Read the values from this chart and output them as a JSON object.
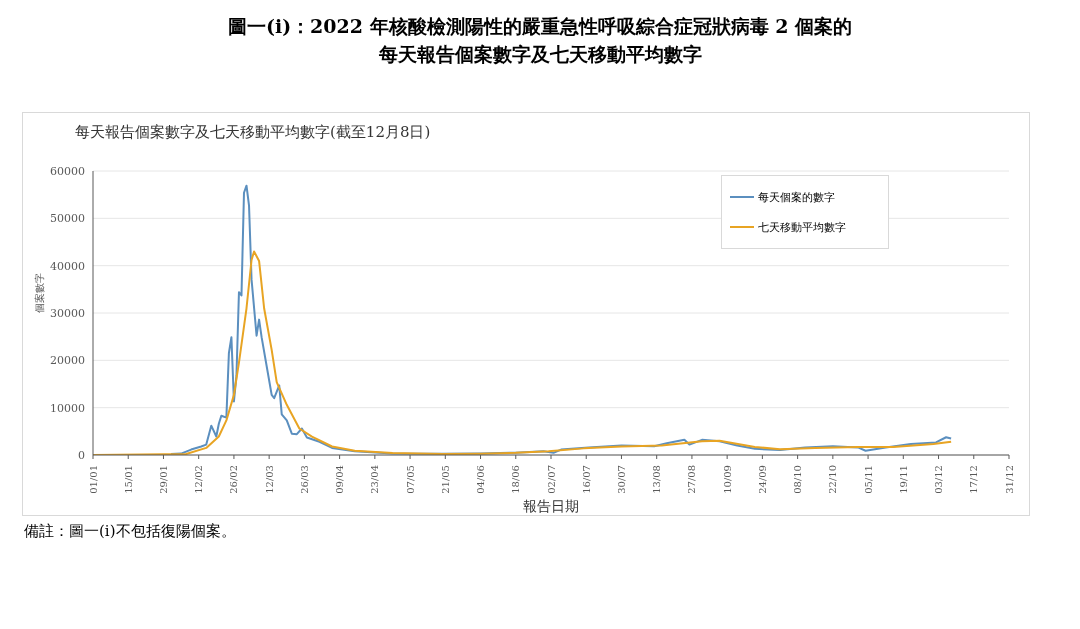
{
  "chart_data": {
    "type": "line",
    "title": "圖一(i)：2022 年核酸檢測陽性的嚴重急性呼吸綜合症冠狀病毒 2 個案的每天報告個案數字及七天移動平均數字",
    "subtitle": "每天報告個案數字及七天移動平均數字(截至12月8日)",
    "xlabel": "報告日期",
    "ylabel": "個案數字",
    "annotations": [
      "備註：圖一(i)不包括復陽個案。"
    ],
    "xlim": [
      "2022-01-01",
      "2022-12-31"
    ],
    "xticks": [
      {
        "value": "2022-01-01",
        "label": "01/01"
      },
      {
        "value": "2022-01-15",
        "label": "15/01"
      },
      {
        "value": "2022-01-29",
        "label": "29/01"
      },
      {
        "value": "2022-02-12",
        "label": "12/02"
      },
      {
        "value": "2022-02-26",
        "label": "26/02"
      },
      {
        "value": "2022-03-12",
        "label": "12/03"
      },
      {
        "value": "2022-03-26",
        "label": "26/03"
      },
      {
        "value": "2022-04-09",
        "label": "09/04"
      },
      {
        "value": "2022-04-23",
        "label": "23/04"
      },
      {
        "value": "2022-05-07",
        "label": "07/05"
      },
      {
        "value": "2022-05-21",
        "label": "21/05"
      },
      {
        "value": "2022-06-04",
        "label": "04/06"
      },
      {
        "value": "2022-06-18",
        "label": "18/06"
      },
      {
        "value": "2022-07-02",
        "label": "02/07"
      },
      {
        "value": "2022-07-16",
        "label": "16/07"
      },
      {
        "value": "2022-07-30",
        "label": "30/07"
      },
      {
        "value": "2022-08-13",
        "label": "13/08"
      },
      {
        "value": "2022-08-27",
        "label": "27/08"
      },
      {
        "value": "2022-09-10",
        "label": "10/09"
      },
      {
        "value": "2022-09-24",
        "label": "24/09"
      },
      {
        "value": "2022-10-08",
        "label": "08/10"
      },
      {
        "value": "2022-10-22",
        "label": "22/10"
      },
      {
        "value": "2022-11-05",
        "label": "05/11"
      },
      {
        "value": "2022-11-19",
        "label": "19/11"
      },
      {
        "value": "2022-12-03",
        "label": "03/12"
      },
      {
        "value": "2022-12-17",
        "label": "17/12"
      },
      {
        "value": "2022-12-31",
        "label": "31/12"
      }
    ],
    "ylim": [
      0,
      60000
    ],
    "yticks": [
      0,
      10000,
      20000,
      30000,
      40000,
      50000,
      60000
    ],
    "grid": "y",
    "legend": "top right",
    "marker": "none",
    "line_style": "solid",
    "series": [
      {
        "name": "每天個案的數字",
        "color": "#5b8fbf",
        "x": [
          "2022-02-01",
          "2022-02-05",
          "2022-02-09",
          "2022-02-13",
          "2022-02-15",
          "2022-02-17",
          "2022-02-19",
          "2022-02-20",
          "2022-02-21",
          "2022-02-23",
          "2022-02-24",
          "2022-02-25",
          "2022-02-26",
          "2022-02-27",
          "2022-02-28",
          "2022-03-01",
          "2022-03-02",
          "2022-03-03",
          "2022-03-04",
          "2022-03-05",
          "2022-03-07",
          "2022-03-08",
          "2022-03-09",
          "2022-03-11",
          "2022-03-13",
          "2022-03-14",
          "2022-03-16",
          "2022-03-17",
          "2022-03-19",
          "2022-03-21",
          "2022-03-23",
          "2022-03-25",
          "2022-03-27",
          "2022-04-01",
          "2022-04-06",
          "2022-04-15",
          "2022-04-30",
          "2022-05-20",
          "2022-06-04",
          "2022-06-18",
          "2022-06-29",
          "2022-07-03",
          "2022-07-06",
          "2022-07-17",
          "2022-07-30",
          "2022-08-12",
          "2022-08-17",
          "2022-08-24",
          "2022-08-26",
          "2022-08-31",
          "2022-09-07",
          "2022-09-14",
          "2022-09-21",
          "2022-10-01",
          "2022-10-11",
          "2022-10-22",
          "2022-11-01",
          "2022-11-04",
          "2022-11-12",
          "2022-11-22",
          "2022-12-02",
          "2022-12-06",
          "2022-12-08"
        ],
        "values": [
          200,
          300,
          1150,
          1800,
          2200,
          6200,
          3900,
          6600,
          8300,
          7900,
          21500,
          24900,
          11300,
          16700,
          34400,
          33700,
          55400,
          56900,
          52700,
          37100,
          25200,
          28600,
          24900,
          18800,
          12700,
          12000,
          14700,
          8600,
          7300,
          4500,
          4400,
          5600,
          3700,
          2800,
          1500,
          800,
          300,
          250,
          300,
          500,
          800,
          450,
          1150,
          1600,
          2000,
          1850,
          2500,
          3200,
          2200,
          3200,
          2900,
          2000,
          1300,
          1050,
          1600,
          1850,
          1600,
          900,
          1600,
          2300,
          2650,
          3750,
          3500
        ]
      },
      {
        "name": "七天移動平均數字",
        "color": "#e8a423",
        "x": [
          "2022-01-01",
          "2022-01-20",
          "2022-02-07",
          "2022-02-15",
          "2022-02-20",
          "2022-02-23",
          "2022-02-26",
          "2022-02-28",
          "2022-03-03",
          "2022-03-05",
          "2022-03-06",
          "2022-03-08",
          "2022-03-10",
          "2022-03-13",
          "2022-03-15",
          "2022-03-19",
          "2022-03-24",
          "2022-03-29",
          "2022-04-06",
          "2022-04-15",
          "2022-04-30",
          "2022-05-20",
          "2022-06-04",
          "2022-06-18",
          "2022-07-01",
          "2022-07-15",
          "2022-07-30",
          "2022-08-15",
          "2022-08-31",
          "2022-09-07",
          "2022-09-21",
          "2022-10-01",
          "2022-10-15",
          "2022-11-01",
          "2022-11-15",
          "2022-12-01",
          "2022-12-08"
        ],
        "values": [
          0,
          100,
          200,
          1500,
          3900,
          7300,
          12700,
          19500,
          31000,
          41200,
          43000,
          41000,
          31000,
          22200,
          15400,
          10600,
          5600,
          3900,
          1800,
          900,
          400,
          200,
          250,
          450,
          800,
          1400,
          1800,
          2000,
          2900,
          3000,
          1700,
          1200,
          1500,
          1700,
          1700,
          2300,
          2800
        ]
      }
    ]
  }
}
